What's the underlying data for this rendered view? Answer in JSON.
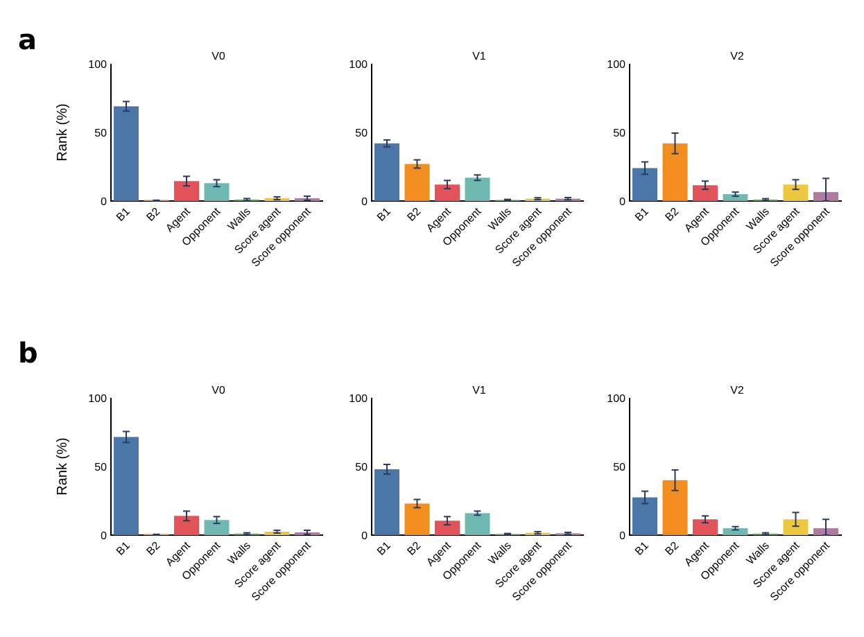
{
  "figure": {
    "rows": [
      {
        "panel_label": "a",
        "charts": [
          {
            "title": "V0",
            "ylabel": "Rank (%)"
          },
          {
            "title": "V1",
            "ylabel": ""
          },
          {
            "title": "V2",
            "ylabel": ""
          }
        ]
      },
      {
        "panel_label": "b",
        "charts": [
          {
            "title": "V0",
            "ylabel": "Rank (%)"
          },
          {
            "title": "V1",
            "ylabel": ""
          },
          {
            "title": "V2",
            "ylabel": ""
          }
        ]
      }
    ]
  },
  "chart_data": [
    {
      "panel": "a",
      "type": "bar",
      "title": "V0",
      "ylabel": "Rank (%)",
      "ylim": [
        0,
        100
      ],
      "yticks": [
        0,
        50,
        100
      ],
      "categories": [
        "B1",
        "B2",
        "Agent",
        "Opponent",
        "Walls",
        "Score agent",
        "Score opponent"
      ],
      "colors": [
        "#4a76a8",
        "#f28d1f",
        "#e3545a",
        "#70b9b2",
        "#5aa153",
        "#edc73e",
        "#b07aa1"
      ],
      "values": [
        69,
        0.3,
        14.5,
        13,
        1,
        2,
        2
      ],
      "errors": [
        3.5,
        0.3,
        3.5,
        2.5,
        0.8,
        1,
        1.5
      ]
    },
    {
      "panel": "a",
      "type": "bar",
      "title": "V1",
      "ylabel": "",
      "ylim": [
        0,
        100
      ],
      "yticks": [
        0,
        50,
        100
      ],
      "categories": [
        "B1",
        "B2",
        "Agent",
        "Opponent",
        "Walls",
        "Score agent",
        "Score opponent"
      ],
      "colors": [
        "#4a76a8",
        "#f28d1f",
        "#e3545a",
        "#70b9b2",
        "#5aa153",
        "#edc73e",
        "#b07aa1"
      ],
      "values": [
        42,
        27,
        12,
        17,
        0.7,
        1.7,
        1.7
      ],
      "errors": [
        2.5,
        3,
        3,
        2,
        0.5,
        0.7,
        0.8
      ]
    },
    {
      "panel": "a",
      "type": "bar",
      "title": "V2",
      "ylabel": "",
      "ylim": [
        0,
        100
      ],
      "yticks": [
        0,
        50,
        100
      ],
      "categories": [
        "B1",
        "B2",
        "Agent",
        "Opponent",
        "Walls",
        "Score agent",
        "Score opponent"
      ],
      "colors": [
        "#4a76a8",
        "#f28d1f",
        "#e3545a",
        "#70b9b2",
        "#5aa153",
        "#edc73e",
        "#b07aa1"
      ],
      "values": [
        24,
        42,
        11.5,
        5,
        1,
        12,
        6.5
      ],
      "errors": [
        4.5,
        7.5,
        3,
        1.5,
        0.7,
        3.5,
        10
      ]
    },
    {
      "panel": "b",
      "type": "bar",
      "title": "V0",
      "ylabel": "Rank (%)",
      "ylim": [
        0,
        100
      ],
      "yticks": [
        0,
        50,
        100
      ],
      "categories": [
        "B1",
        "B2",
        "Agent",
        "Opponent",
        "Walls",
        "Score agent",
        "Score opponent"
      ],
      "colors": [
        "#4a76a8",
        "#f28d1f",
        "#e3545a",
        "#70b9b2",
        "#5aa153",
        "#edc73e",
        "#b07aa1"
      ],
      "values": [
        71.5,
        0.3,
        14,
        11,
        1,
        2.5,
        2
      ],
      "errors": [
        4,
        0.3,
        3.5,
        2.5,
        0.7,
        1,
        1.5
      ]
    },
    {
      "panel": "b",
      "type": "bar",
      "title": "V1",
      "ylabel": "",
      "ylim": [
        0,
        100
      ],
      "yticks": [
        0,
        50,
        100
      ],
      "categories": [
        "B1",
        "B2",
        "Agent",
        "Opponent",
        "Walls",
        "Score agent",
        "Score opponent"
      ],
      "colors": [
        "#4a76a8",
        "#f28d1f",
        "#e3545a",
        "#70b9b2",
        "#5aa153",
        "#edc73e",
        "#b07aa1"
      ],
      "values": [
        48,
        23,
        10.5,
        16,
        0.7,
        1.7,
        1.3
      ],
      "errors": [
        3.5,
        3,
        3,
        1.5,
        0.5,
        0.8,
        0.7
      ]
    },
    {
      "panel": "b",
      "type": "bar",
      "title": "V2",
      "ylabel": "",
      "ylim": [
        0,
        100
      ],
      "yticks": [
        0,
        50,
        100
      ],
      "categories": [
        "B1",
        "B2",
        "Agent",
        "Opponent",
        "Walls",
        "Score agent",
        "Score opponent"
      ],
      "colors": [
        "#4a76a8",
        "#f28d1f",
        "#e3545a",
        "#70b9b2",
        "#5aa153",
        "#edc73e",
        "#b07aa1"
      ],
      "values": [
        27.5,
        40,
        11.5,
        5,
        1,
        11.5,
        5
      ],
      "errors": [
        4.5,
        7.5,
        2.5,
        1.2,
        0.7,
        5,
        6.5
      ]
    }
  ]
}
